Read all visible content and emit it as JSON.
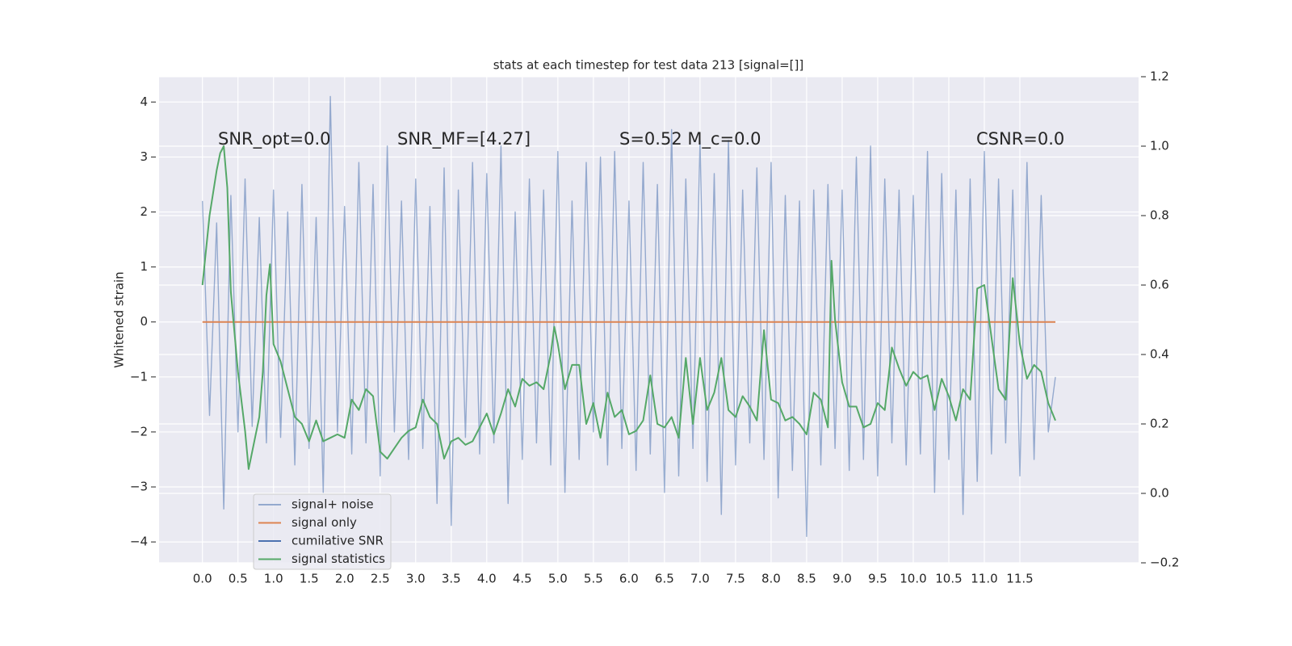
{
  "chart_data": {
    "type": "line",
    "title": "stats at each timestep for test data 213 [signal=[]]",
    "ylabel": "Whitened strain",
    "annotations": [
      "SNR_opt=0.0",
      "SNR_MF=[4.27]",
      "S=0.52   M_c=0.0",
      "CSNR=0.0"
    ],
    "xlim": [
      -0.61,
      13.17
    ],
    "ylim": [
      -4.38,
      4.46
    ],
    "y2lim": [
      -0.2,
      1.2
    ],
    "xticks": [
      {
        "value": 0,
        "label": "0.0"
      },
      {
        "value": 0.5,
        "label": "0.5"
      },
      {
        "value": 1,
        "label": "1.0"
      },
      {
        "value": 1.5,
        "label": "1.5"
      },
      {
        "value": 2,
        "label": "2.0"
      },
      {
        "value": 2.5,
        "label": "2.5"
      },
      {
        "value": 3,
        "label": "3.0"
      },
      {
        "value": 3.5,
        "label": "3.5"
      },
      {
        "value": 4,
        "label": "4.0"
      },
      {
        "value": 4.5,
        "label": "4.5"
      },
      {
        "value": 5,
        "label": "5.0"
      },
      {
        "value": 5.5,
        "label": "5.5"
      },
      {
        "value": 6,
        "label": "6.0"
      },
      {
        "value": 6.5,
        "label": "6.5"
      },
      {
        "value": 7,
        "label": "7.0"
      },
      {
        "value": 7.5,
        "label": "7.5"
      },
      {
        "value": 8,
        "label": "8.0"
      },
      {
        "value": 8.5,
        "label": "8.5"
      },
      {
        "value": 9,
        "label": "9.0"
      },
      {
        "value": 9.5,
        "label": "9.5"
      },
      {
        "value": 10,
        "label": "10.0"
      },
      {
        "value": 10.5,
        "label": "10.5"
      },
      {
        "value": 11,
        "label": "11.0"
      },
      {
        "value": 11.5,
        "label": "11.5"
      }
    ],
    "yticks": [
      {
        "value": -4,
        "label": "−4"
      },
      {
        "value": -3,
        "label": "−3"
      },
      {
        "value": -2,
        "label": "−2"
      },
      {
        "value": -1,
        "label": "−1"
      },
      0,
      1,
      2,
      3,
      4
    ],
    "y2ticks": [
      {
        "value": -0.2,
        "label": "−0.2"
      },
      {
        "value": 0,
        "label": "0.0"
      },
      0.2,
      0.4,
      0.6,
      0.8,
      {
        "value": 1,
        "label": "1.0"
      },
      1.2
    ],
    "grid": true,
    "legend": "lower left",
    "series": [
      {
        "name": "signal+ noise",
        "color": "#4c72b0",
        "x": [
          0,
          0.1,
          0.2,
          0.3,
          0.4,
          0.5,
          0.6,
          0.7,
          0.8,
          0.9,
          1,
          1.1,
          1.2,
          1.3,
          1.4,
          1.5,
          1.6,
          1.7,
          1.8,
          1.9,
          2,
          2.1,
          2.2,
          2.3,
          2.4,
          2.5,
          2.6,
          2.7,
          2.8,
          2.9,
          3,
          3.1,
          3.2,
          3.3,
          3.4,
          3.5,
          3.6,
          3.7,
          3.8,
          3.9,
          4,
          4.1,
          4.2,
          4.3,
          4.4,
          4.5,
          4.6,
          4.7,
          4.8,
          4.9,
          5,
          5.1,
          5.2,
          5.3,
          5.4,
          5.5,
          5.6,
          5.7,
          5.8,
          5.9,
          6,
          6.1,
          6.2,
          6.3,
          6.4,
          6.5,
          6.6,
          6.7,
          6.8,
          6.9,
          7,
          7.1,
          7.2,
          7.3,
          7.4,
          7.5,
          7.6,
          7.7,
          7.8,
          7.9,
          8,
          8.1,
          8.2,
          8.3,
          8.4,
          8.5,
          8.6,
          8.7,
          8.8,
          8.9,
          9,
          9.1,
          9.2,
          9.3,
          9.4,
          9.5,
          9.6,
          9.7,
          9.8,
          9.9,
          10,
          10.1,
          10.2,
          10.3,
          10.4,
          10.5,
          10.6,
          10.7,
          10.8,
          10.9,
          11,
          11.1,
          11.2,
          11.3,
          11.4,
          11.5,
          11.6,
          11.7,
          11.8,
          11.9,
          12
        ],
        "values": [
          2.2,
          -1.7,
          1.8,
          -3.4,
          2.3,
          -2.0,
          2.6,
          -1.9,
          1.9,
          -2.2,
          2.4,
          -2.1,
          2.0,
          -2.6,
          2.5,
          -2.3,
          1.9,
          -3.1,
          4.1,
          -2.0,
          2.1,
          -2.4,
          2.9,
          -2.2,
          2.5,
          -2.8,
          3.2,
          -2.0,
          2.2,
          -2.5,
          2.6,
          -2.3,
          2.1,
          -3.3,
          2.8,
          -3.7,
          2.4,
          -2.1,
          2.9,
          -2.4,
          2.7,
          -2.2,
          3.2,
          -3.3,
          2.0,
          -2.5,
          2.6,
          -2.2,
          2.4,
          -2.6,
          3.1,
          -3.1,
          2.2,
          -2.5,
          2.9,
          -2.0,
          3.0,
          -2.6,
          3.1,
          -2.3,
          2.2,
          -2.7,
          2.9,
          -2.4,
          2.5,
          -3.1,
          3.5,
          -2.8,
          2.6,
          -2.3,
          3.3,
          -2.9,
          2.7,
          -3.5,
          3.3,
          -2.6,
          2.4,
          -2.2,
          2.8,
          -2.5,
          2.9,
          -3.2,
          2.3,
          -2.7,
          2.2,
          -3.9,
          2.4,
          -2.6,
          2.5,
          -2.3,
          2.4,
          -2.7,
          3.0,
          -2.5,
          3.2,
          -2.8,
          2.6,
          -2.2,
          2.4,
          -2.6,
          2.3,
          -2.4,
          3.1,
          -3.1,
          2.7,
          -2.5,
          2.4,
          -3.5,
          2.6,
          -2.9,
          3.1,
          -2.4,
          2.6,
          -2.2,
          2.4,
          -2.8,
          2.9,
          -2.5,
          2.3,
          -2.0,
          -1.0
        ]
      },
      {
        "name": "signal only",
        "color": "#dd8452",
        "x": [
          0,
          12
        ],
        "values": [
          0,
          0
        ]
      },
      {
        "name": "cumilative SNR",
        "color": "#4c72b0"
      },
      {
        "name": "signal statistics",
        "color": "#55a868",
        "axis": "y2",
        "x": [
          0,
          0.1,
          0.2,
          0.25,
          0.3,
          0.35,
          0.4,
          0.5,
          0.6,
          0.65,
          0.7,
          0.8,
          0.85,
          0.9,
          0.95,
          1,
          1.1,
          1.2,
          1.3,
          1.4,
          1.5,
          1.6,
          1.7,
          1.8,
          1.9,
          2,
          2.1,
          2.2,
          2.3,
          2.4,
          2.5,
          2.6,
          2.7,
          2.8,
          2.9,
          3,
          3.1,
          3.2,
          3.3,
          3.4,
          3.5,
          3.6,
          3.7,
          3.8,
          3.9,
          4,
          4.1,
          4.2,
          4.3,
          4.4,
          4.5,
          4.6,
          4.7,
          4.8,
          4.9,
          4.95,
          5,
          5.1,
          5.2,
          5.3,
          5.4,
          5.5,
          5.6,
          5.7,
          5.8,
          5.9,
          6,
          6.1,
          6.2,
          6.3,
          6.4,
          6.5,
          6.6,
          6.7,
          6.8,
          6.9,
          7,
          7.1,
          7.2,
          7.3,
          7.4,
          7.5,
          7.6,
          7.7,
          7.8,
          7.9,
          8,
          8.1,
          8.2,
          8.3,
          8.4,
          8.5,
          8.6,
          8.7,
          8.8,
          8.85,
          8.9,
          9,
          9.1,
          9.2,
          9.3,
          9.4,
          9.5,
          9.6,
          9.7,
          9.8,
          9.9,
          10,
          10.1,
          10.2,
          10.3,
          10.4,
          10.5,
          10.6,
          10.7,
          10.8,
          10.9,
          11,
          11.1,
          11.2,
          11.3,
          11.4,
          11.5,
          11.6,
          11.7,
          11.8,
          11.9,
          12
        ],
        "values": [
          0.6,
          0.8,
          0.93,
          0.98,
          1.0,
          0.88,
          0.58,
          0.35,
          0.18,
          0.07,
          0.12,
          0.22,
          0.35,
          0.57,
          0.66,
          0.43,
          0.38,
          0.3,
          0.22,
          0.2,
          0.15,
          0.21,
          0.15,
          0.16,
          0.17,
          0.16,
          0.27,
          0.24,
          0.3,
          0.28,
          0.12,
          0.1,
          0.13,
          0.16,
          0.18,
          0.19,
          0.27,
          0.22,
          0.2,
          0.1,
          0.15,
          0.16,
          0.14,
          0.15,
          0.19,
          0.23,
          0.17,
          0.23,
          0.3,
          0.25,
          0.33,
          0.31,
          0.32,
          0.3,
          0.4,
          0.48,
          0.43,
          0.3,
          0.37,
          0.37,
          0.2,
          0.26,
          0.16,
          0.29,
          0.22,
          0.24,
          0.17,
          0.18,
          0.21,
          0.34,
          0.2,
          0.19,
          0.22,
          0.16,
          0.39,
          0.2,
          0.39,
          0.24,
          0.29,
          0.39,
          0.24,
          0.22,
          0.28,
          0.25,
          0.21,
          0.47,
          0.27,
          0.26,
          0.21,
          0.22,
          0.2,
          0.17,
          0.29,
          0.27,
          0.19,
          0.67,
          0.5,
          0.32,
          0.25,
          0.25,
          0.19,
          0.2,
          0.26,
          0.24,
          0.42,
          0.36,
          0.31,
          0.35,
          0.33,
          0.34,
          0.24,
          0.33,
          0.28,
          0.21,
          0.3,
          0.27,
          0.59,
          0.6,
          0.45,
          0.3,
          0.27,
          0.62,
          0.43,
          0.33,
          0.37,
          0.35,
          0.26,
          0.21
        ]
      }
    ]
  }
}
